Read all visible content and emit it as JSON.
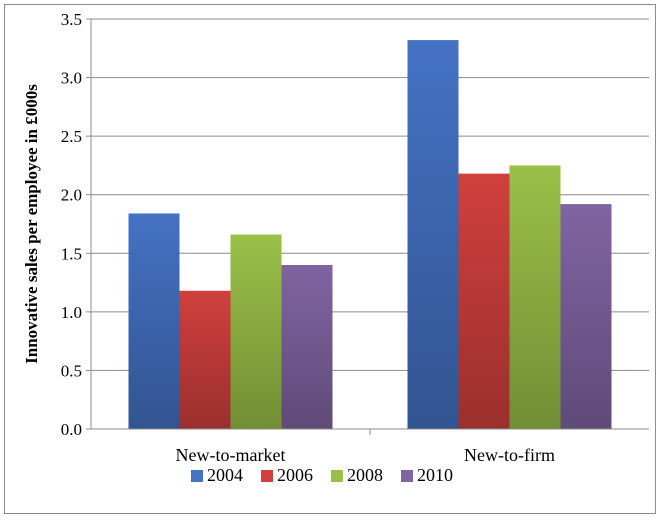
{
  "chart_data": {
    "type": "bar",
    "title": "",
    "xlabel": "",
    "ylabel": "Innovative sales per employee in £000s",
    "ylim": [
      0,
      3.5
    ],
    "yticks": [
      "0.0",
      "0.5",
      "1.0",
      "1.5",
      "2.0",
      "2.5",
      "3.0",
      "3.5"
    ],
    "categories": [
      "New-to-market",
      "New-to-firm"
    ],
    "series": [
      {
        "name": "2004",
        "color": "#4472c4",
        "values": [
          1.84,
          3.32
        ]
      },
      {
        "name": "2006",
        "color": "#d0403d",
        "values": [
          1.18,
          2.18
        ]
      },
      {
        "name": "2008",
        "color": "#9ac048",
        "values": [
          1.66,
          2.25
        ]
      },
      {
        "name": "2010",
        "color": "#8064a2",
        "values": [
          1.4,
          1.92
        ]
      }
    ],
    "grid": true,
    "legend_position": "bottom"
  }
}
